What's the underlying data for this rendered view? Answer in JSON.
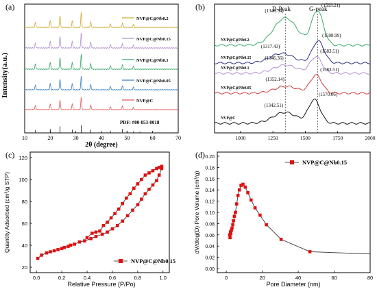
{
  "chart_data": [
    {
      "panel": "(a)",
      "type": "line",
      "xlabel": "2θ (degree)",
      "ylabel": "Intensity(a.u.)",
      "xlim": [
        10,
        70
      ],
      "xticks": [
        "10",
        "20",
        "30",
        "40",
        "50",
        "60",
        "70"
      ],
      "peaks_2theta": [
        14.2,
        20.0,
        23.8,
        28.6,
        32.1,
        35.8,
        43.5,
        48.2,
        52.5
      ],
      "series": [
        {
          "name": "NVP@C@Nb0.2",
          "color": "#d4a72c"
        },
        {
          "name": "NVP@C@Nb0.15",
          "color": "#b38fd1"
        },
        {
          "name": "NVP@C@Nb0.1",
          "color": "#3aa86b"
        },
        {
          "name": "NVP@C@Nb0.05",
          "color": "#3a7fc4"
        },
        {
          "name": "NVP@C",
          "color": "#e05a5a"
        }
      ],
      "reference": {
        "name": "PDF: #00-053-0018",
        "sticks": [
          {
            "x": 14.2,
            "h": 0.25
          },
          {
            "x": 20.0,
            "h": 0.35
          },
          {
            "x": 23.8,
            "h": 0.6
          },
          {
            "x": 28.6,
            "h": 0.3
          },
          {
            "x": 32.1,
            "h": 0.7
          },
          {
            "x": 35.8,
            "h": 0.3
          },
          {
            "x": 43.5,
            "h": 0.2
          },
          {
            "x": 48.2,
            "h": 0.35
          },
          {
            "x": 50.0,
            "h": 0.2
          },
          {
            "x": 52.5,
            "h": 0.15
          },
          {
            "x": 55.0,
            "h": 0.12
          }
        ]
      }
    },
    {
      "panel": "(b)",
      "type": "line",
      "xlabel": "",
      "xlim": [
        800,
        2000
      ],
      "xticks": [
        "1000",
        "1250",
        "1500",
        "1750",
        "2000"
      ],
      "annotations": [
        "D-Peak",
        "G-peak"
      ],
      "series": [
        {
          "name": "NVP@C@Nb0.2",
          "color": "#3aa86b",
          "d": "1346.34",
          "g": "1593.21"
        },
        {
          "name": "NVP@C@Nb0.15",
          "color": "#2b2b8c",
          "d": "1317.43",
          "g": "1598.99"
        },
        {
          "name": "NVP@C@Nb0.1",
          "color": "#b38fd1",
          "d": "1346.36",
          "g": "1583.51"
        },
        {
          "name": "NVP@C@Nb0.05",
          "color": "#d03a3a",
          "d": "1352.14",
          "g": "1583.51"
        },
        {
          "name": "NVP@C",
          "color": "#111111",
          "d": "1342.51",
          "g": "1570.06"
        }
      ]
    },
    {
      "panel": "(c)",
      "type": "line",
      "xlabel": "Relative Pressure (P/Po)",
      "ylabel": "Quantity Adsorbed (cm³/g STP)",
      "xlim": [
        0,
        1.0
      ],
      "ylim": [
        20,
        120
      ],
      "xticks": [
        "0.0",
        "0.2",
        "0.4",
        "0.6",
        "0.8",
        "1.0"
      ],
      "yticks": [
        "20",
        "40",
        "60",
        "80",
        "100",
        "120"
      ],
      "legend": "NVP@C@Nb0.15",
      "adsorption": {
        "x": [
          0.01,
          0.04,
          0.08,
          0.11,
          0.14,
          0.17,
          0.2,
          0.22,
          0.25,
          0.27,
          0.3,
          0.34,
          0.38,
          0.43,
          0.47,
          0.52,
          0.56,
          0.6,
          0.64,
          0.68,
          0.72,
          0.76,
          0.8,
          0.83,
          0.86,
          0.89,
          0.92,
          0.95,
          0.97,
          0.99
        ],
        "y": [
          28,
          31,
          33,
          34,
          35,
          36,
          37,
          38,
          39,
          40,
          41,
          43,
          44,
          46,
          48,
          50,
          52,
          55,
          58,
          62,
          67,
          72,
          77,
          82,
          87,
          91,
          95,
          99,
          104,
          110
        ]
      },
      "desorption": {
        "x": [
          0.99,
          0.97,
          0.95,
          0.92,
          0.89,
          0.86,
          0.83,
          0.8,
          0.77,
          0.74,
          0.71,
          0.68,
          0.65,
          0.62,
          0.59,
          0.56,
          0.53,
          0.5,
          0.47,
          0.44,
          0.4
        ],
        "y": [
          112,
          111,
          110,
          108,
          106,
          104,
          100,
          96,
          92,
          87,
          83,
          78,
          73,
          69,
          65,
          61,
          58,
          53,
          52,
          51,
          47
        ]
      }
    },
    {
      "panel": "(d)",
      "type": "line",
      "xlabel": "Pore Diameter (nm)",
      "ylabel": "dV/dlog(D) Pore Volume (cm³/g)",
      "xlim": [
        0,
        80
      ],
      "ylim": [
        0,
        0.2
      ],
      "xticks": [
        "0",
        "20",
        "40",
        "60",
        "80"
      ],
      "yticks": [
        "0.00",
        "0.02",
        "0.04",
        "0.06",
        "0.08",
        "0.10",
        "0.12",
        "0.14",
        "0.16",
        "0.18",
        "0.20"
      ],
      "legend": "NVP@C@Nb0.15",
      "x": [
        1.9,
        2.1,
        2.3,
        2.5,
        2.8,
        3.2,
        3.6,
        4.0,
        4.5,
        5.1,
        5.8,
        6.5,
        7.3,
        8.2,
        9.3,
        10.5,
        12.0,
        13.8,
        16.0,
        18.8,
        22.3,
        30.5,
        46.5
      ],
      "y": [
        0.06,
        0.055,
        0.065,
        0.062,
        0.068,
        0.072,
        0.078,
        0.085,
        0.093,
        0.1,
        0.115,
        0.13,
        0.14,
        0.148,
        0.15,
        0.145,
        0.135,
        0.122,
        0.108,
        0.095,
        0.078,
        0.052,
        0.03
      ]
    }
  ]
}
